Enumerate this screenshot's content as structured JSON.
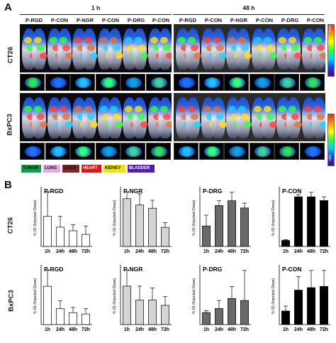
{
  "panel_a": {
    "letter": "A",
    "time_1h": "1 h",
    "time_48h": "48 h",
    "columns_1h": [
      "P-RGD",
      "P-CON",
      "P-NGR",
      "P-CON",
      "P-DRG",
      "P-CON"
    ],
    "columns_48h": [
      "P-RGD",
      "P-CON",
      "P-NGR",
      "P-CON",
      "P-DRG",
      "P-CON"
    ],
    "rows": [
      "CT26",
      "BxPC3"
    ],
    "colorbar_top": "MAX",
    "colorbar_bottom": "MIN",
    "legend": [
      {
        "label": "TUMOR",
        "color": "#1a9a4a",
        "text": "#111"
      },
      {
        "label": "LUNG",
        "color": "#e8a8e0",
        "text": "#111"
      },
      {
        "label": "LIVER",
        "color": "#7a2a24",
        "text": "#111"
      },
      {
        "label": "HEART",
        "color": "#d81818",
        "text": "#fff"
      },
      {
        "label": "KIDNEY",
        "color": "#f0e020",
        "text": "#111"
      },
      {
        "label": "BLADDER",
        "color": "#5020a0",
        "text": "#fff"
      }
    ]
  },
  "panel_b": {
    "letter": "B",
    "rows": [
      "CT26",
      "BxPC3"
    ],
    "ylabel": "% ID (Injected Dose)"
  },
  "chart_data": [
    {
      "type": "bar",
      "row": "CT26",
      "title": "P-RGD",
      "categories": [
        "1h",
        "24h",
        "48h",
        "72h"
      ],
      "values": [
        2.5,
        1.6,
        1.3,
        1.0
      ],
      "errors": [
        2.0,
        0.9,
        0.5,
        0.7
      ],
      "ylabel": "% ID (Injected Dose)",
      "color": "#ffffff"
    },
    {
      "type": "bar",
      "row": "CT26",
      "title": "P-NGR",
      "categories": [
        "1h",
        "24h",
        "48h",
        "72h"
      ],
      "values": [
        3.0,
        2.6,
        2.4,
        1.2
      ],
      "errors": [
        0.4,
        0.7,
        0.5,
        0.3
      ],
      "ylabel": "% ID (Injected Dose)",
      "color": "#d4d4d4"
    },
    {
      "type": "bar",
      "row": "CT26",
      "title": "P-DRG",
      "categories": [
        "1h",
        "24h",
        "48h",
        "72h"
      ],
      "values": [
        1.7,
        3.4,
        3.8,
        3.2
      ],
      "errors": [
        0.9,
        0.4,
        0.7,
        0.4
      ],
      "ylabel": "% ID (Injected Dose)",
      "color": "#6a6a6a"
    },
    {
      "type": "bar",
      "row": "CT26",
      "title": "P-CON",
      "categories": [
        "1h",
        "24h",
        "48h",
        "72h"
      ],
      "values": [
        0.8,
        6.6,
        6.6,
        6.1
      ],
      "errors": [
        0.1,
        0.3,
        0.6,
        0.5
      ],
      "ylabel": "% ID (Injected Dose)",
      "color": "#000000"
    },
    {
      "type": "bar",
      "row": "BxPC3",
      "title": "P-RGD",
      "categories": [
        "1h",
        "24h",
        "48h",
        "72h"
      ],
      "values": [
        2.9,
        1.2,
        0.9,
        0.8
      ],
      "errors": [
        1.2,
        0.6,
        0.4,
        0.4
      ],
      "ylabel": "% ID (Injected Dose)",
      "color": "#ffffff"
    },
    {
      "type": "bar",
      "row": "BxPC3",
      "title": "P-NGR",
      "categories": [
        "1h",
        "24h",
        "48h",
        "72h"
      ],
      "values": [
        2.2,
        1.4,
        1.4,
        1.1
      ],
      "errors": [
        0.9,
        0.8,
        0.7,
        0.5
      ],
      "ylabel": "% ID (Injected Dose)",
      "color": "#d4d4d4"
    },
    {
      "type": "bar",
      "row": "BxPC3",
      "title": "P-DRG",
      "categories": [
        "1h",
        "24h",
        "48h",
        "72h"
      ],
      "values": [
        0.6,
        0.8,
        1.3,
        1.2
      ],
      "errors": [
        0.1,
        0.4,
        0.6,
        1.5
      ],
      "ylabel": "% ID (Injected Dose)",
      "color": "#6a6a6a"
    },
    {
      "type": "bar",
      "row": "BxPC3",
      "title": "P-CON",
      "categories": [
        "1h",
        "24h",
        "48h",
        "72h"
      ],
      "values": [
        1.1,
        2.8,
        3.0,
        3.1
      ],
      "errors": [
        0.4,
        1.1,
        1.4,
        1.3
      ],
      "ylabel": "% ID (Injected Dose)",
      "color": "#000000"
    }
  ]
}
